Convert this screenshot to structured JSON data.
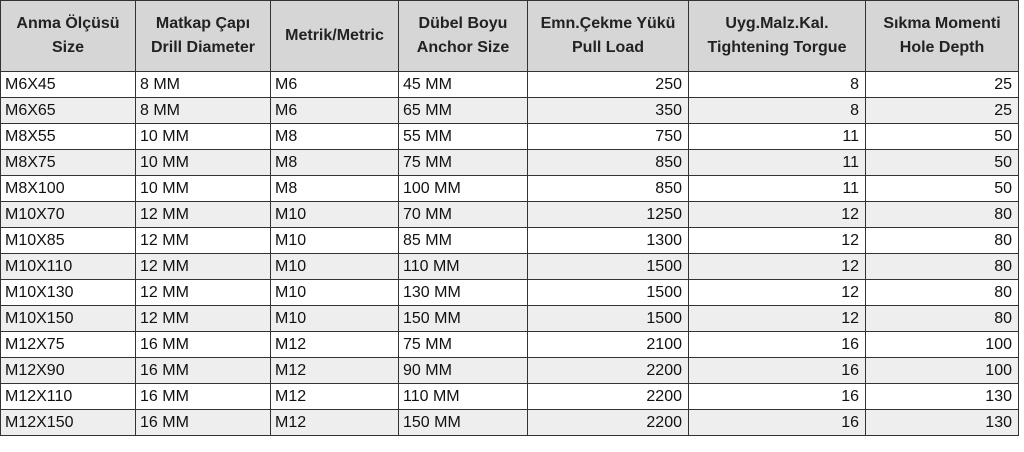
{
  "headers": [
    [
      "Anma Ölçüsü",
      "Size"
    ],
    [
      "Matkap Çapı",
      "Drill Diameter"
    ],
    [
      "Metrik/Metric",
      ""
    ],
    [
      "Dübel Boyu",
      "Anchor Size"
    ],
    [
      "Emn.Çekme Yükü",
      "Pull Load"
    ],
    [
      "Uyg.Malz.Kal.",
      "Tightening Torgue"
    ],
    [
      "Sıkma Momenti",
      "Hole Depth"
    ]
  ],
  "rows": [
    [
      "M6X45",
      "8 MM",
      "M6",
      "45 MM",
      "250",
      "8",
      "25"
    ],
    [
      "M6X65",
      "8 MM",
      "M6",
      "65 MM",
      "350",
      "8",
      "25"
    ],
    [
      "M8X55",
      "10 MM",
      "M8",
      "55 MM",
      "750",
      "11",
      "50"
    ],
    [
      "M8X75",
      "10 MM",
      "M8",
      "75 MM",
      "850",
      "11",
      "50"
    ],
    [
      "M8X100",
      "10 MM",
      "M8",
      "100 MM",
      "850",
      "11",
      "50"
    ],
    [
      "M10X70",
      "12 MM",
      "M10",
      "70 MM",
      "1250",
      "12",
      "80"
    ],
    [
      "M10X85",
      "12 MM",
      "M10",
      "85 MM",
      "1300",
      "12",
      "80"
    ],
    [
      "M10X110",
      "12 MM",
      "M10",
      "110 MM",
      "1500",
      "12",
      "80"
    ],
    [
      "M10X130",
      "12 MM",
      "M10",
      "130 MM",
      "1500",
      "12",
      "80"
    ],
    [
      "M10X150",
      "12 MM",
      "M10",
      "150 MM",
      "1500",
      "12",
      "80"
    ],
    [
      "M12X75",
      "16 MM",
      "M12",
      "75 MM",
      "2100",
      "16",
      "100"
    ],
    [
      "M12X90",
      "16 MM",
      "M12",
      "90 MM",
      "2200",
      "16",
      "100"
    ],
    [
      "M12X110",
      "16 MM",
      "M12",
      "110 MM",
      "2200",
      "16",
      "130"
    ],
    [
      "M12X150",
      "16 MM",
      "M12",
      "150 MM",
      "2200",
      "16",
      "130"
    ]
  ]
}
